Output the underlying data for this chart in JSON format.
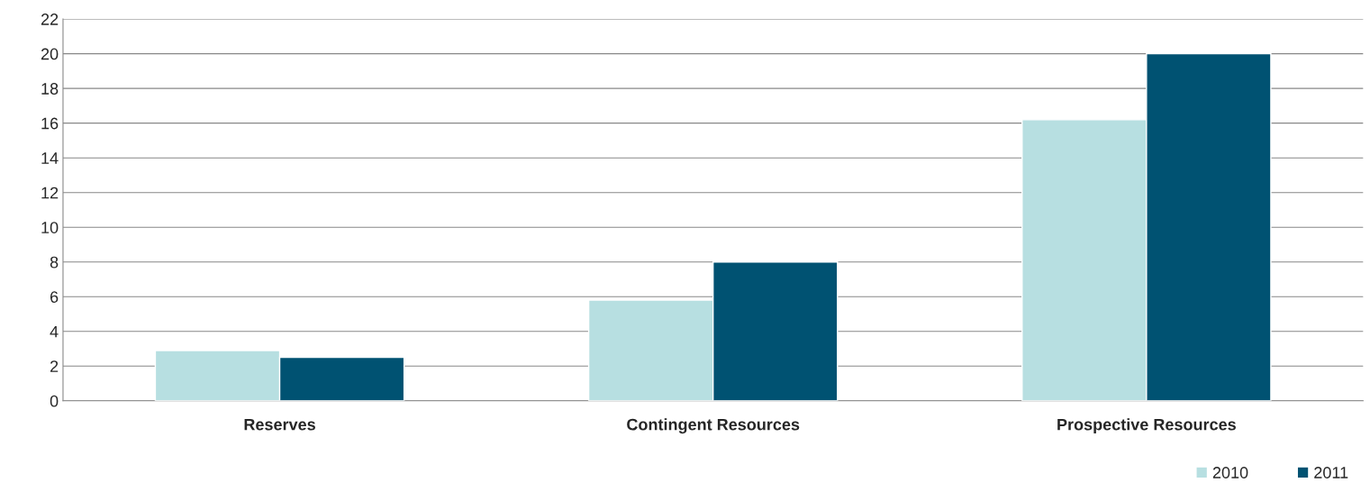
{
  "chart_data": {
    "type": "bar",
    "categories": [
      "Reserves",
      "Contingent Resources",
      "Prospective Resources"
    ],
    "series": [
      {
        "name": "2010",
        "color": "#b7dfe1",
        "values": [
          2.9,
          5.8,
          16.2
        ]
      },
      {
        "name": "2011",
        "color": "#005272",
        "values": [
          2.5,
          8.0,
          20.0
        ]
      }
    ],
    "ylim": [
      0,
      22
    ],
    "yticks": [
      0,
      2,
      4,
      6,
      8,
      10,
      12,
      14,
      16,
      18,
      20,
      22
    ],
    "grid": "y",
    "legend": "bottom right"
  }
}
